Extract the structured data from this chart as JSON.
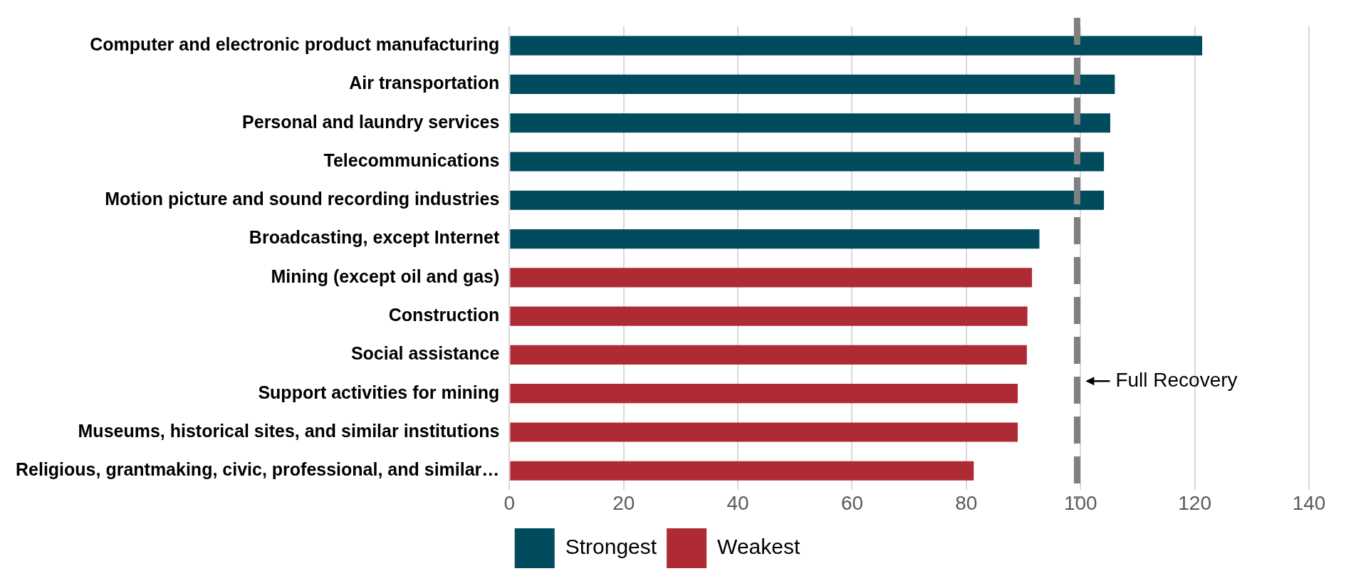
{
  "chart_data": {
    "type": "bar",
    "orientation": "horizontal",
    "categories": [
      "Computer and electronic product manufacturing",
      "Air transportation",
      "Personal and laundry services",
      "Telecommunications",
      "Motion picture and sound recording industries",
      "Broadcasting, except Internet",
      "Mining (except oil and gas)",
      "Construction",
      "Social assistance",
      "Support activities for mining",
      "Museums, historical sites, and similar institutions",
      "Religious, grantmaking, civic, professional, and similar…"
    ],
    "series": [
      {
        "name": "Strongest",
        "color": "#004b5e",
        "values": [
          121.3,
          106.0,
          105.2,
          104.1,
          104.1,
          92.8,
          null,
          null,
          null,
          null,
          null,
          null
        ]
      },
      {
        "name": "Weakest",
        "color": "#ae2b33",
        "values": [
          null,
          null,
          null,
          null,
          null,
          null,
          91.5,
          90.7,
          90.6,
          89.0,
          89.0,
          81.3
        ]
      }
    ],
    "xlim": [
      0,
      140
    ],
    "xticks": [
      0,
      20,
      40,
      60,
      80,
      100,
      120,
      140
    ],
    "grid": "x",
    "legend": "bottom",
    "ref_lines": [
      {
        "axis": "x",
        "value": 99.4,
        "label": "Full Recovery",
        "color": "#808080",
        "line_style": "dashed"
      }
    ]
  }
}
